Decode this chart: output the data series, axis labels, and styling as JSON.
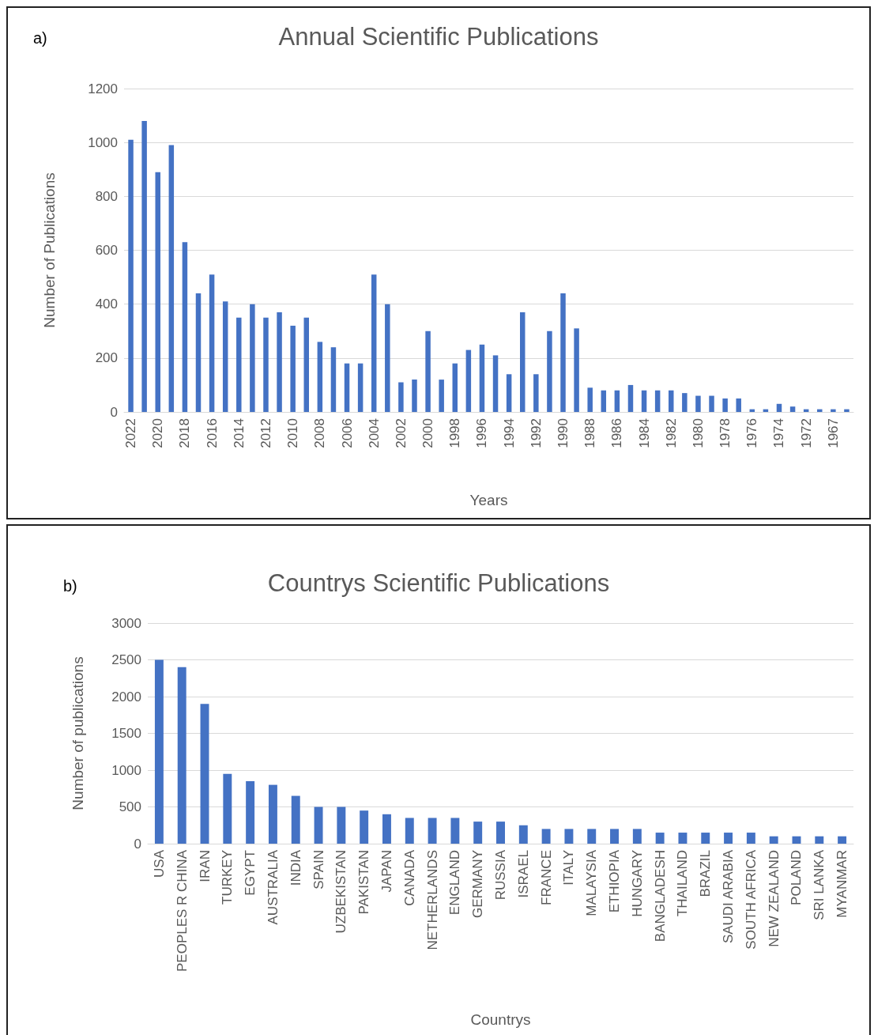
{
  "chart_data": [
    {
      "type": "bar",
      "title": "Annual Scientific Publications",
      "xlabel": "Years",
      "ylabel": "Number of Publications",
      "annotations": [
        "a)"
      ],
      "categories": [
        "2022",
        null,
        "2020",
        null,
        "2018",
        null,
        "2016",
        null,
        "2014",
        null,
        "2012",
        null,
        "2010",
        null,
        "2008",
        null,
        "2006",
        null,
        "2004",
        null,
        "2002",
        null,
        "2000",
        null,
        "1998",
        null,
        "1996",
        null,
        "1994",
        null,
        "1992",
        null,
        "1990",
        null,
        "1988",
        null,
        "1986",
        null,
        "1984",
        null,
        "1982",
        null,
        "1980",
        null,
        "1978",
        null,
        "1976",
        null,
        "1974",
        null,
        "1972",
        null,
        "1967",
        null
      ],
      "values": [
        1010,
        1080,
        890,
        990,
        630,
        440,
        510,
        410,
        350,
        400,
        350,
        370,
        320,
        350,
        260,
        240,
        180,
        180,
        510,
        400,
        110,
        120,
        300,
        120,
        180,
        230,
        250,
        210,
        140,
        370,
        140,
        300,
        440,
        310,
        90,
        80,
        80,
        100,
        80,
        80,
        80,
        70,
        60,
        60,
        50,
        50,
        10,
        10,
        30,
        20,
        10,
        10,
        10,
        10
      ],
      "color": "#4472c4",
      "ylim": [
        0,
        1200
      ],
      "yticks": [
        0,
        200,
        400,
        600,
        800,
        1000,
        1200
      ],
      "grid": "y"
    },
    {
      "type": "bar",
      "title": "Countrys Scientific Publications",
      "xlabel": "Countrys",
      "ylabel": "Number of publications",
      "annotations": [
        "b)"
      ],
      "categories": [
        "USA",
        "PEOPLES R CHINA",
        "IRAN",
        "TURKEY",
        "EGYPT",
        "AUSTRALIA",
        "INDIA",
        "SPAIN",
        "UZBEKISTAN",
        "PAKISTAN",
        "JAPAN",
        "CANADA",
        "NETHERLANDS",
        "ENGLAND",
        "GERMANY",
        "RUSSIA",
        "ISRAEL",
        "FRANCE",
        "ITALY",
        "MALAYSIA",
        "ETHIOPIA",
        "HUNGARY",
        "BANGLADESH",
        "THAILAND",
        "BRAZIL",
        "SAUDI ARABIA",
        "SOUTH AFRICA",
        "NEW ZEALAND",
        "POLAND",
        "SRI LANKA",
        "MYANMAR"
      ],
      "values": [
        2500,
        2400,
        1900,
        950,
        850,
        800,
        650,
        500,
        500,
        450,
        400,
        350,
        350,
        350,
        300,
        300,
        250,
        200,
        200,
        200,
        200,
        200,
        150,
        150,
        150,
        150,
        150,
        100,
        100,
        100,
        100
      ],
      "color": "#4472c4",
      "ylim": [
        0,
        3000
      ],
      "yticks": [
        0,
        500,
        1000,
        1500,
        2000,
        2500,
        3000
      ],
      "grid": "y"
    }
  ]
}
